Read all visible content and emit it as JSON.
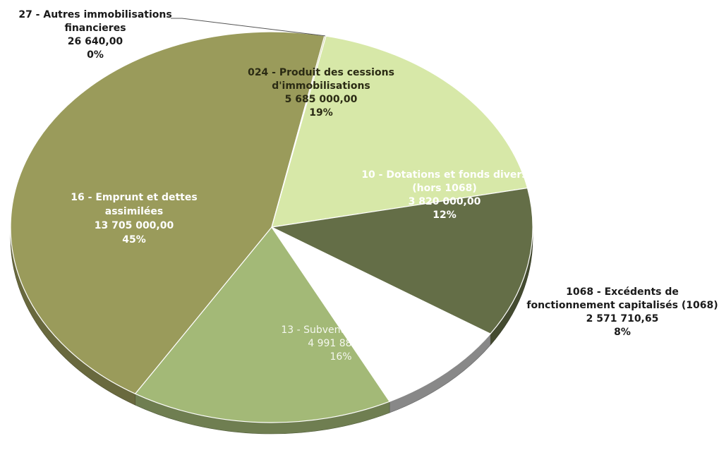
{
  "chart_data": {
    "type": "pie",
    "title": "",
    "slices": [
      {
        "code": "024",
        "name": "024 - Produit des cessions d'immobilisations",
        "label_lines": [
          "024 - Produit des cessions",
          "d'immobilisations"
        ],
        "value_label": "5 685 000,00",
        "value": 5685000.0,
        "percent_label": "19%",
        "color": "#d7e8a8"
      },
      {
        "code": "10",
        "name": "10 - Dotations et fonds divers (hors 1068)",
        "label_lines": [
          "10 - Dotations et fonds divers",
          "(hors 1068)"
        ],
        "value_label": "3 820 000,00",
        "value": 3820000.0,
        "percent_label": "12%",
        "color": "#646e47"
      },
      {
        "code": "1068",
        "name": "1068 - Excédents de fonctionnement capitalisés (1068)",
        "label_lines": [
          "1068 - Excédents de",
          "fonctionnement capitalisés (1068)"
        ],
        "value_label": "2 571 710,65",
        "value": 2571710.65,
        "percent_label": "8%",
        "color": "#ffffff"
      },
      {
        "code": "13",
        "name": "13 - Subventions reçues",
        "label_lines": [
          "13 - Subventions reçues"
        ],
        "value_label": "4 991 881,42",
        "value": 4991881.42,
        "percent_label": "16%",
        "color": "#a3b977"
      },
      {
        "code": "16",
        "name": "16 - Emprunt et dettes assimilées",
        "label_lines": [
          "16 - Emprunt et dettes",
          "assimilées"
        ],
        "value_label": "13 705 000,00",
        "value": 13705000.0,
        "percent_label": "45%",
        "color": "#9a9b5b"
      },
      {
        "code": "27",
        "name": "27 - Autres immobilisations financieres",
        "label_lines": [
          "27 - Autres immobilisations",
          "financieres"
        ],
        "value_label": "26 640,00",
        "value": 26640.0,
        "percent_label": "0%",
        "color": "#c9c98f"
      }
    ]
  }
}
